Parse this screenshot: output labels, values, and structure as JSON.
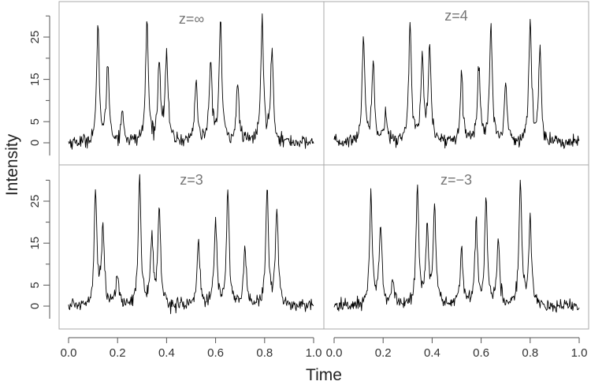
{
  "chart_data": {
    "type": "line",
    "xlabel": "Time",
    "ylabel": "Intensity",
    "xlim": [
      0,
      1
    ],
    "ylim": [
      -3.5,
      32
    ],
    "x_ticks": [
      "0.0",
      "0.2",
      "0.4",
      "0.6",
      "0.8",
      "1.0"
    ],
    "y_ticks": [
      "0",
      "5",
      "15",
      "25"
    ],
    "y_tick_values": [
      0,
      5,
      15,
      25
    ],
    "noise_sd": 0.8,
    "panels": [
      {
        "title": "z=∞",
        "peaks": [
          [
            0.12,
            26.5
          ],
          [
            0.16,
            18.5
          ],
          [
            0.22,
            7
          ],
          [
            0.32,
            28.5
          ],
          [
            0.37,
            19
          ],
          [
            0.4,
            21
          ],
          [
            0.52,
            14.5
          ],
          [
            0.58,
            19
          ],
          [
            0.62,
            28.5
          ],
          [
            0.69,
            13.5
          ],
          [
            0.79,
            28.5
          ],
          [
            0.83,
            22
          ]
        ]
      },
      {
        "title": "z=4",
        "peaks": [
          [
            0.12,
            25
          ],
          [
            0.16,
            19
          ],
          [
            0.21,
            7
          ],
          [
            0.31,
            28.5
          ],
          [
            0.36,
            19.5
          ],
          [
            0.39,
            21.5
          ],
          [
            0.52,
            17
          ],
          [
            0.59,
            18.5
          ],
          [
            0.64,
            27.5
          ],
          [
            0.7,
            13.5
          ],
          [
            0.8,
            28.5
          ],
          [
            0.84,
            21.5
          ]
        ]
      },
      {
        "title": "z=3",
        "peaks": [
          [
            0.11,
            27.5
          ],
          [
            0.14,
            19
          ],
          [
            0.2,
            7
          ],
          [
            0.29,
            30.5
          ],
          [
            0.34,
            16
          ],
          [
            0.37,
            22.5
          ],
          [
            0.53,
            15.5
          ],
          [
            0.6,
            20
          ],
          [
            0.65,
            27
          ],
          [
            0.72,
            13.5
          ],
          [
            0.81,
            28
          ],
          [
            0.85,
            23
          ]
        ]
      },
      {
        "title": "z=−3",
        "peaks": [
          [
            0.15,
            26
          ],
          [
            0.19,
            19.5
          ],
          [
            0.24,
            6
          ],
          [
            0.34,
            28.5
          ],
          [
            0.38,
            18.5
          ],
          [
            0.41,
            22.5
          ],
          [
            0.52,
            13
          ],
          [
            0.58,
            19.5
          ],
          [
            0.62,
            25
          ],
          [
            0.67,
            15.5
          ],
          [
            0.76,
            29
          ],
          [
            0.8,
            21.5
          ]
        ]
      }
    ]
  }
}
